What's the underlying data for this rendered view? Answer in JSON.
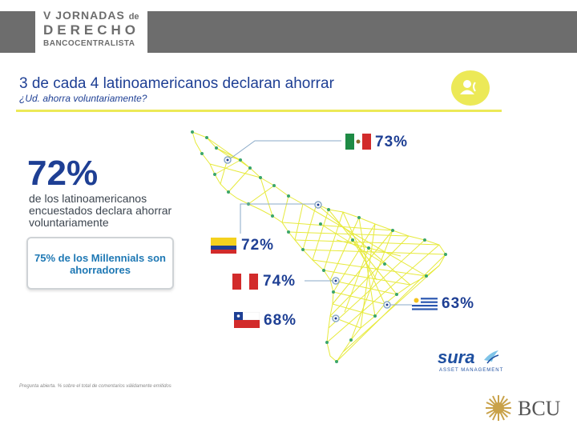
{
  "event_logo": {
    "line1_main": "V JORNADAS",
    "line1_de": "de",
    "line2": "DERECHO",
    "line3": "BANCOCENTRALISTA"
  },
  "slide": {
    "title": "3 de cada 4 latinoamericanos declaran ahorrar",
    "subtitle": "¿Ud. ahorra voluntariamente?",
    "icon": "users-icon"
  },
  "summary": {
    "headline_pct": "72%",
    "description": "de los latinoamericanos encuestados declara ahorrar voluntariamente",
    "callout": "75% de los Millennials son ahorradores"
  },
  "countries": [
    {
      "name": "Mexico",
      "pct": "73%"
    },
    {
      "name": "Colombia",
      "pct": "72%"
    },
    {
      "name": "Peru",
      "pct": "74%"
    },
    {
      "name": "Chile",
      "pct": "68%"
    },
    {
      "name": "Uruguay",
      "pct": "63%"
    }
  ],
  "colors": {
    "accent_yellow": "#ece957",
    "title_blue": "#1e3f94",
    "header_gray": "#6d6d6d"
  },
  "footer": {
    "note": "Pregunta abierta. % sobre el total de comentarios válidamente emitidos",
    "sura_name": "sura",
    "sura_sub": "ASSET MANAGEMENT",
    "bcu_name": "BCU"
  }
}
